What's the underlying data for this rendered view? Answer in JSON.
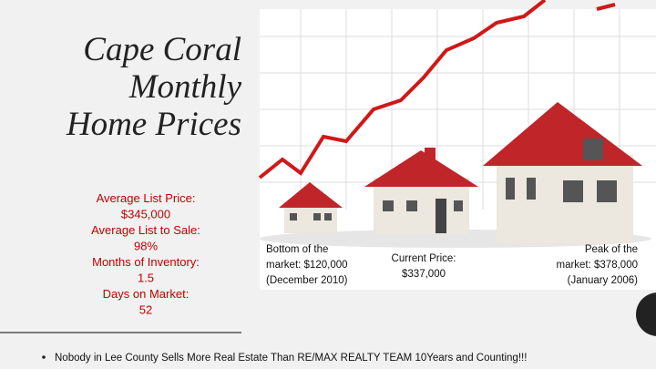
{
  "title": {
    "lines": [
      "Cape Coral",
      "Monthly",
      "Home Prices"
    ]
  },
  "stats": [
    "Average List Price:",
    "$345,000",
    "Average List to Sale:",
    "98%",
    "Months of Inventory:",
    "1.5",
    "Days on Market:",
    "52"
  ],
  "captions": [
    {
      "lines": [
        "Bottom of the",
        "market: $120,000",
        "(December 2010)"
      ]
    },
    {
      "lines": [
        "Current Price:",
        "$337,000"
      ]
    },
    {
      "lines": [
        "Peak of the",
        "market: $378,000",
        "(January 2006)"
      ]
    }
  ],
  "bullet": "Nobody in Lee County Sells More Real Estate Than RE/MAX REALTY TEAM  10Years and Counting!!!"
}
